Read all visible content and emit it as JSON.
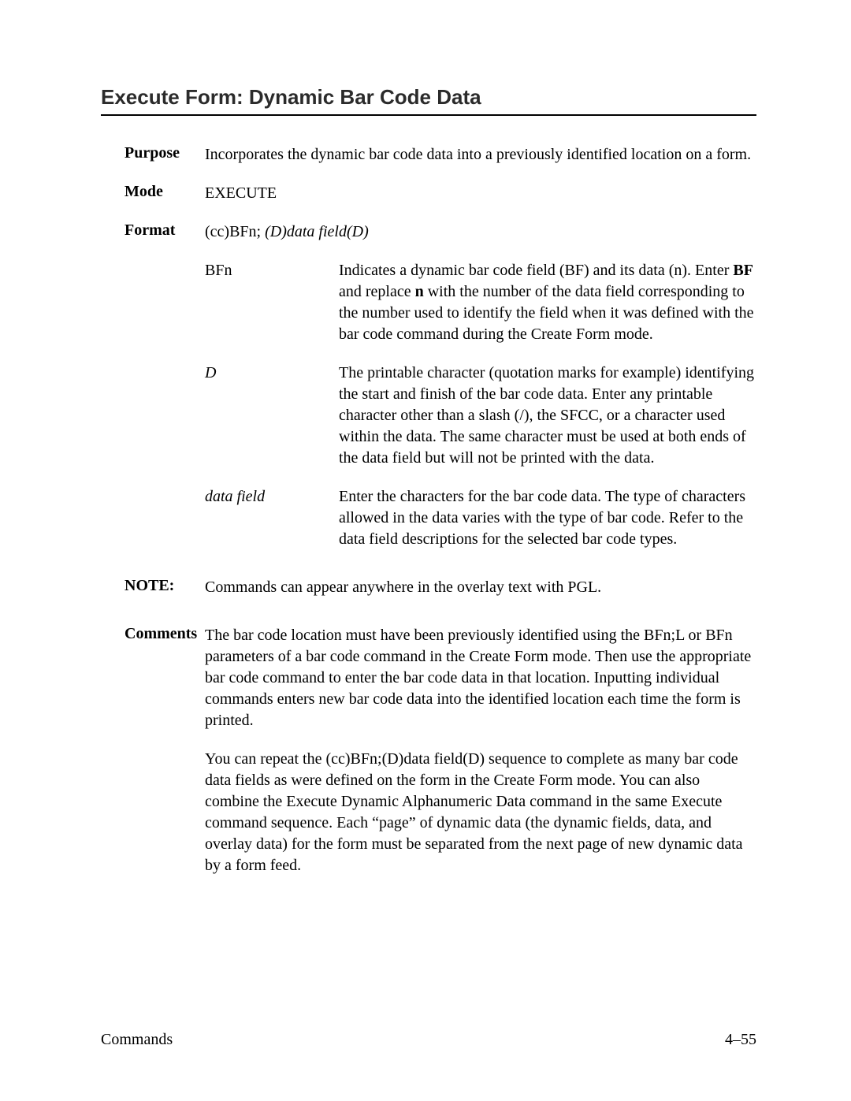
{
  "title": "Execute Form:  Dynamic Bar Code Data",
  "purpose": {
    "label": "Purpose",
    "text": "Incorporates the dynamic bar code data into a previously identified location on a form."
  },
  "mode": {
    "label": "Mode",
    "value": "EXECUTE"
  },
  "format": {
    "label": "Format",
    "prefix": "(cc)BFn;   ",
    "italic": "(D)data field(D)"
  },
  "params": {
    "bfn": {
      "term": "BFn",
      "desc_pre": "Indicates a dynamic bar code field (BF) and its data (n). Enter ",
      "bf": "BF",
      "desc_mid": " and replace ",
      "n": "n",
      "desc_post": " with the number of the data field corresponding to the number used to identify the field when it was defined with the bar code command during the Create Form mode."
    },
    "d": {
      "term": "D",
      "desc": "The printable character (quotation marks for example) identifying the start and finish of the bar code data. Enter any printable character other than a slash (/), the SFCC, or a character used within the data. The same character must be used at both ends of the data field but will not be printed with the data."
    },
    "datafield": {
      "term": "data field",
      "desc": "Enter the characters for the bar code data. The type of characters allowed in the data varies with the type of bar code. Refer to the data field descriptions for the selected bar code types."
    }
  },
  "note": {
    "label": "NOTE:",
    "text": "Commands can appear anywhere in the overlay text with PGL."
  },
  "comments": {
    "label": "Comments",
    "p1": "The bar code location must have been previously identified using the BFn;L or BFn parameters of a bar code command in the Create Form mode. Then use the appropriate bar code command to enter the bar code data in that location. Inputting individual commands enters new bar code data into the identified location each time the form is printed.",
    "p2": "You can repeat the (cc)BFn;(D)data field(D) sequence to complete as many bar code data fields as were defined on the form in the Create Form mode. You can also combine the Execute Dynamic Alphanumeric Data command in the same Execute command sequence. Each “page” of dynamic data (the dynamic fields, data, and overlay data) for the form must be separated from the next page of new dynamic data by a form feed."
  },
  "footer": {
    "left": "Commands",
    "right": "4–55"
  }
}
